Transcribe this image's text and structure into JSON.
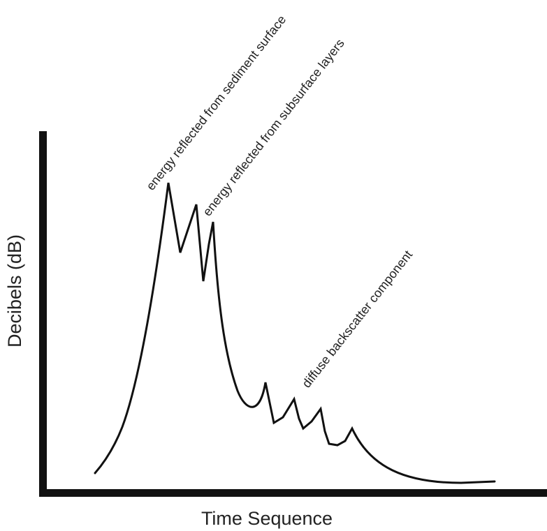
{
  "diagram": {
    "axes": {
      "x_label": "Time Sequence",
      "y_label": "Decibels (dB)"
    },
    "annotations": {
      "sediment_surface": "energy reflected from sediment surface",
      "subsurface_layers": "energy reflected from subsurface layers",
      "diffuse_backscatter": "diffuse backscatter component"
    },
    "colors": {
      "line": "#111111",
      "text": "#222222",
      "background": "#ffffff"
    }
  }
}
